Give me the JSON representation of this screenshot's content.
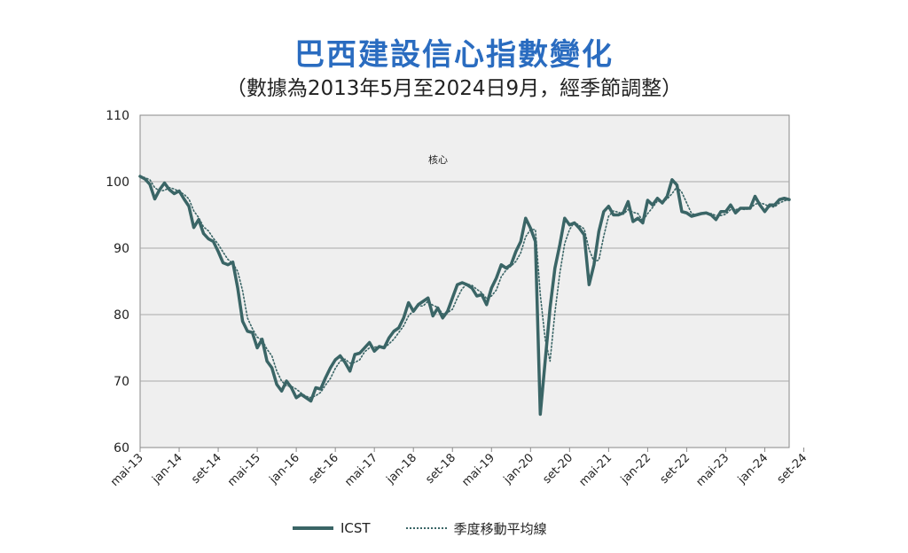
{
  "header": {
    "title": "巴西建設信心指數變化",
    "subtitle": "（數據為2013年5月至2024日9月，經季節調整）"
  },
  "chart_data": {
    "type": "line",
    "title": "巴西建設信心指數變化",
    "subtitle": "（數據為2013年5月至2024日9月，經季節調整）",
    "annotation": "核心",
    "ylim": [
      60,
      110
    ],
    "yticks": [
      60,
      70,
      80,
      90,
      100,
      110
    ],
    "grid": true,
    "legend_position": "bottom",
    "x_tick_labels": [
      "mai-13",
      "jan-14",
      "set-14",
      "mai-15",
      "jan-16",
      "set-16",
      "mai-17",
      "jan-18",
      "set-18",
      "mai-19",
      "jan-20",
      "set-20",
      "mai-21",
      "jan-22",
      "set-22",
      "mai-23",
      "jan-24",
      "set-24"
    ],
    "x_start": "2013-05",
    "x_end": "2024-09",
    "series": [
      {
        "name": "ICST",
        "style": "solid",
        "color": "#3a6566",
        "values": [
          100.8,
          100.4,
          99.6,
          97.4,
          98.8,
          99.8,
          98.8,
          98.2,
          98.6,
          97.4,
          96.3,
          93.1,
          94.3,
          92.2,
          91.4,
          91.0,
          89.5,
          87.8,
          87.5,
          87.9,
          84.0,
          79.0,
          77.5,
          77.3,
          75.0,
          76.3,
          73.0,
          72.0,
          69.5,
          68.5,
          70.0,
          69.0,
          67.5,
          68.0,
          67.5,
          67.0,
          69.0,
          68.8,
          70.5,
          72.0,
          73.2,
          73.8,
          72.8,
          71.5,
          74.0,
          74.2,
          75.0,
          75.8,
          74.5,
          75.2,
          75.0,
          76.5,
          77.5,
          78.0,
          79.5,
          81.8,
          80.5,
          81.5,
          82.0,
          82.5,
          79.8,
          81.0,
          79.5,
          80.5,
          82.5,
          84.5,
          84.8,
          84.5,
          84.0,
          82.8,
          83.0,
          81.5,
          84.0,
          85.5,
          87.5,
          87.0,
          87.5,
          89.5,
          91.0,
          94.5,
          93.0,
          91.0,
          65.0,
          73.0,
          81.0,
          87.0,
          90.5,
          94.5,
          93.5,
          93.8,
          93.0,
          92.0,
          84.5,
          87.5,
          92.5,
          95.5,
          96.3,
          95.0,
          95.0,
          95.3,
          97.0,
          94.0,
          94.5,
          93.8,
          97.2,
          96.5,
          97.5,
          96.8,
          97.8,
          100.3,
          99.5,
          95.5,
          95.3,
          94.8,
          95.0,
          95.2,
          95.3,
          95.0,
          94.3,
          95.5,
          95.5,
          96.5,
          95.3,
          96.0,
          96.0,
          96.0,
          97.8,
          96.5,
          95.5,
          96.5,
          96.5,
          97.3,
          97.5,
          97.3
        ]
      },
      {
        "name": "季度移動平均線",
        "style": "dotted",
        "color": "#3a6566",
        "values": [
          100.8,
          100.6,
          100.3,
          99.1,
          98.6,
          98.7,
          99.1,
          98.9,
          98.5,
          98.1,
          97.4,
          95.6,
          94.6,
          93.2,
          92.6,
          91.5,
          90.6,
          89.4,
          88.3,
          87.7,
          86.5,
          83.6,
          79.5,
          77.9,
          76.6,
          76.2,
          74.8,
          73.8,
          71.5,
          70.0,
          69.3,
          69.2,
          68.8,
          68.2,
          67.7,
          67.5,
          67.8,
          68.3,
          69.4,
          70.4,
          71.9,
          73.0,
          73.3,
          72.7,
          72.8,
          73.2,
          74.4,
          75.0,
          75.1,
          75.2,
          74.9,
          75.6,
          76.3,
          77.3,
          78.3,
          79.8,
          80.6,
          81.3,
          81.3,
          82.0,
          81.4,
          81.1,
          80.1,
          80.3,
          80.8,
          82.5,
          83.9,
          84.6,
          84.4,
          83.8,
          83.3,
          82.4,
          82.8,
          83.7,
          85.7,
          86.7,
          87.3,
          88.0,
          89.3,
          91.7,
          92.8,
          92.8,
          83.0,
          76.3,
          73.0,
          80.3,
          86.2,
          90.7,
          92.8,
          93.9,
          93.4,
          92.9,
          89.8,
          88.0,
          88.2,
          91.8,
          94.8,
          95.6,
          95.4,
          95.1,
          95.8,
          95.4,
          95.2,
          94.1,
          95.2,
          96.1,
          97.1,
          96.9,
          97.4,
          98.2,
          99.2,
          98.4,
          96.8,
          95.2,
          95.0,
          95.1,
          95.2,
          95.2,
          94.9,
          94.9,
          95.1,
          95.8,
          95.8,
          95.9,
          95.8,
          96.0,
          96.6,
          96.8,
          96.6,
          96.2,
          96.2,
          96.8,
          97.1,
          97.4
        ]
      }
    ]
  },
  "legend": {
    "items": [
      {
        "label": "ICST"
      },
      {
        "label": "季度移動平均線"
      }
    ]
  }
}
